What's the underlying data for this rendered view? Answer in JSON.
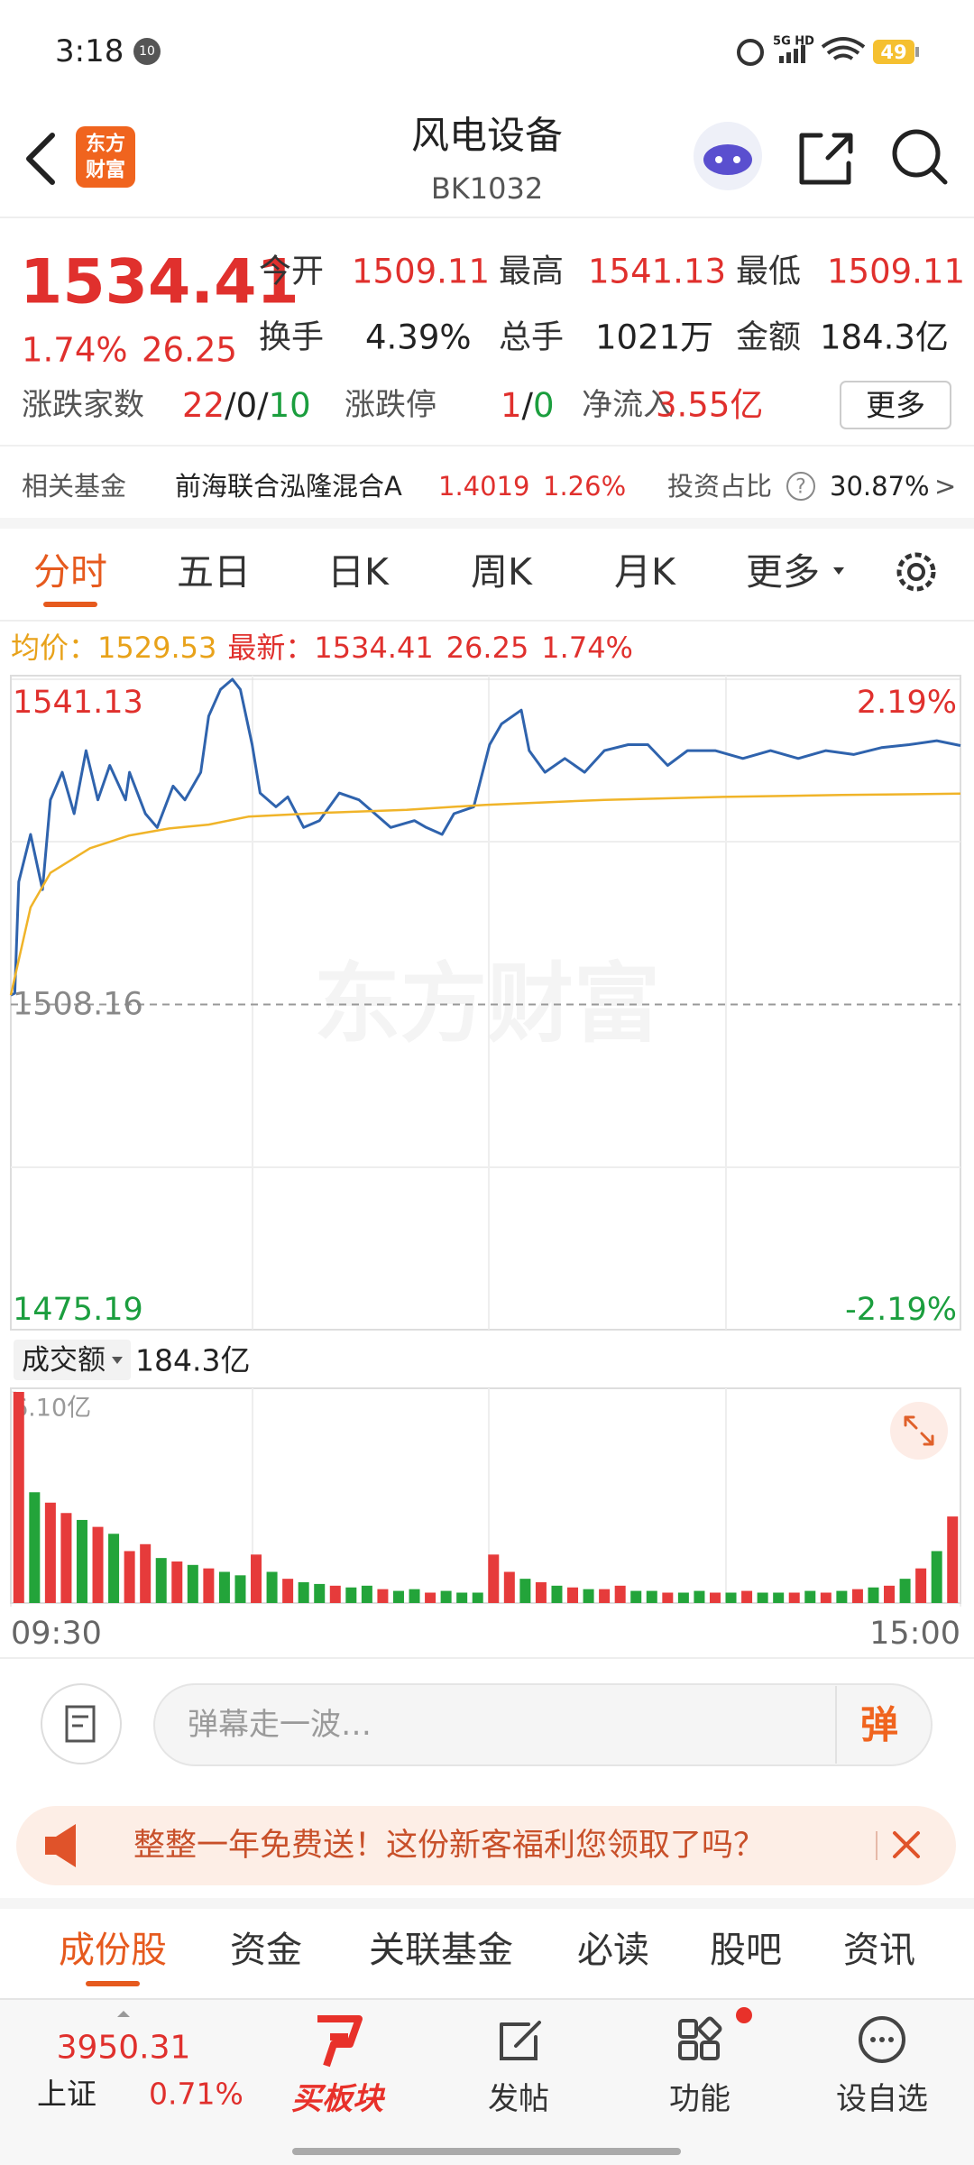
{
  "status_bar": {
    "time": "3:18",
    "notif_badge": "10",
    "network": "5G HD",
    "battery": "49"
  },
  "header": {
    "logo": [
      "东方",
      "财富"
    ],
    "title": "风电设备",
    "code": "BK1032"
  },
  "quote": {
    "price": "1534.41",
    "change_pct": "1.74%",
    "change": "26.25",
    "fields": [
      {
        "label": "今开",
        "value": "1509.11"
      },
      {
        "label": "最高",
        "value": "1541.13"
      },
      {
        "label": "最低",
        "value": "1509.11"
      },
      {
        "label": "换手",
        "value": "4.39%"
      },
      {
        "label": "总手",
        "value": "1021万"
      },
      {
        "label": "金额",
        "value": "184.3亿"
      }
    ],
    "breadth": {
      "label": "涨跌家数",
      "up": "22",
      "flat": "0",
      "down": "10",
      "sep": "/"
    },
    "limit": {
      "label": "涨跌停",
      "up": "1",
      "down": "0"
    },
    "net_inflow": {
      "label": "净流入",
      "value": "3.55亿"
    },
    "more_button": "更多"
  },
  "fund": {
    "label": "相关基金",
    "name": "前海联合泓隆混合A",
    "nav": "1.4019",
    "change_pct": "1.26%",
    "ratio_label": "投资占比",
    "help": "?",
    "ratio": "30.87%",
    "arrow": ">"
  },
  "tabs": {
    "items": [
      "分时",
      "五日",
      "日K",
      "周K",
      "月K",
      "更多"
    ],
    "active": 0
  },
  "info_bar": {
    "avg_label": "均价：",
    "avg": "1529.53",
    "latest_label": "最新：",
    "latest": "1534.41",
    "change": "26.25",
    "change_pct": "1.74%"
  },
  "watermark": "东方财富",
  "chart_data": [
    {
      "type": "line",
      "xlim": [
        0,
        240
      ],
      "ylim": [
        1475.19,
        1541.13
      ],
      "yticks": [
        1475.19,
        1508.16,
        1541.13
      ],
      "y2lim": [
        -2.19,
        2.19
      ],
      "y2ticks": [
        {
          "value": -2.19,
          "label": "-2.19%"
        },
        {
          "value": 2.19,
          "label": "2.19%"
        }
      ],
      "series": [
        {
          "color": "#2f63ad",
          "x": [
            0,
            1,
            2,
            5,
            8,
            10,
            13,
            16,
            19,
            22,
            25,
            29,
            30,
            34,
            37,
            41,
            44,
            48,
            50,
            53,
            56,
            58,
            61,
            63,
            67,
            70,
            74,
            78,
            83,
            88,
            92,
            96,
            102,
            105,
            109,
            112,
            117,
            121,
            124,
            129,
            131,
            135,
            140,
            145,
            150,
            156,
            161,
            166,
            171,
            178,
            185,
            192,
            199,
            206,
            213,
            220,
            227,
            234,
            240
          ],
          "values": [
            1509.11,
            1509.3,
            1520.6,
            1525.4,
            1519.8,
            1528.9,
            1531.7,
            1527.5,
            1533.9,
            1528.9,
            1532.4,
            1528.9,
            1531.7,
            1527.5,
            1526.1,
            1530.3,
            1528.9,
            1531.7,
            1537.4,
            1540.1,
            1541.13,
            1540.1,
            1534.5,
            1529.6,
            1528.2,
            1529.2,
            1526.1,
            1526.8,
            1529.6,
            1528.9,
            1527.5,
            1526.1,
            1526.8,
            1526.1,
            1525.4,
            1527.5,
            1528.2,
            1534.5,
            1536.6,
            1538.0,
            1533.9,
            1531.7,
            1533.1,
            1531.7,
            1533.9,
            1534.5,
            1534.5,
            1532.4,
            1533.9,
            1533.9,
            1533.1,
            1533.9,
            1533.1,
            1533.9,
            1533.5,
            1534.2,
            1534.5,
            1534.9,
            1534.41
          ]
        },
        {
          "color": "#f0b429",
          "x": [
            0,
            5,
            10,
            20,
            30,
            40,
            50,
            60,
            80,
            100,
            120,
            150,
            180,
            210,
            240
          ],
          "values": [
            1509.11,
            1518,
            1521.5,
            1524,
            1525.3,
            1526,
            1526.4,
            1527.2,
            1527.6,
            1527.9,
            1528.4,
            1528.9,
            1529.2,
            1529.4,
            1529.53
          ]
        }
      ]
    },
    {
      "type": "bar",
      "label": "成交额",
      "total": "184.3亿",
      "xlim": [
        0,
        240
      ],
      "xticks": [
        {
          "value": 0,
          "label": "09:30"
        },
        {
          "value": 240,
          "label": "15:00"
        }
      ],
      "ylim": [
        0,
        6.1
      ],
      "yticks": [
        {
          "value": 6.1,
          "label": "6.10亿"
        }
      ],
      "x": [
        2,
        6,
        10,
        14,
        18,
        22,
        26,
        30,
        34,
        38,
        42,
        46,
        50,
        54,
        58,
        62,
        66,
        70,
        74,
        78,
        82,
        86,
        90,
        94,
        98,
        102,
        106,
        110,
        114,
        118,
        122,
        126,
        130,
        134,
        138,
        142,
        146,
        150,
        154,
        158,
        162,
        166,
        170,
        174,
        178,
        182,
        186,
        190,
        194,
        198,
        202,
        206,
        210,
        214,
        218,
        222,
        226,
        230,
        234,
        238
      ],
      "values": [
        6.1,
        3.2,
        2.9,
        2.6,
        2.4,
        2.2,
        2.0,
        1.5,
        1.7,
        1.3,
        1.2,
        1.1,
        1.0,
        0.9,
        0.8,
        1.4,
        0.9,
        0.7,
        0.6,
        0.55,
        0.5,
        0.45,
        0.5,
        0.4,
        0.35,
        0.4,
        0.3,
        0.35,
        0.3,
        0.3,
        1.4,
        0.9,
        0.7,
        0.6,
        0.5,
        0.45,
        0.4,
        0.4,
        0.5,
        0.35,
        0.35,
        0.3,
        0.3,
        0.35,
        0.3,
        0.3,
        0.35,
        0.3,
        0.3,
        0.3,
        0.35,
        0.3,
        0.35,
        0.4,
        0.45,
        0.5,
        0.7,
        1.0,
        1.5,
        2.5
      ],
      "colors": [
        "#e63b3b",
        "#23a43a",
        "#e63b3b",
        "#e63b3b",
        "#23a43a",
        "#e63b3b",
        "#23a43a",
        "#e63b3b",
        "#e63b3b",
        "#23a43a",
        "#e63b3b",
        "#23a43a",
        "#e63b3b",
        "#23a43a",
        "#23a43a",
        "#e63b3b",
        "#23a43a",
        "#e63b3b",
        "#23a43a",
        "#23a43a",
        "#e63b3b",
        "#23a43a",
        "#23a43a",
        "#e63b3b",
        "#23a43a",
        "#23a43a",
        "#e63b3b",
        "#23a43a",
        "#23a43a",
        "#23a43a",
        "#e63b3b",
        "#e63b3b",
        "#23a43a",
        "#e63b3b",
        "#23a43a",
        "#e63b3b",
        "#23a43a",
        "#e63b3b",
        "#e63b3b",
        "#23a43a",
        "#23a43a",
        "#e63b3b",
        "#23a43a",
        "#23a43a",
        "#e63b3b",
        "#23a43a",
        "#e63b3b",
        "#23a43a",
        "#23a43a",
        "#e63b3b",
        "#23a43a",
        "#e63b3b",
        "#23a43a",
        "#e63b3b",
        "#23a43a",
        "#e63b3b",
        "#23a43a",
        "#e63b3b",
        "#23a43a",
        "#e63b3b"
      ]
    }
  ],
  "danmaku": {
    "placeholder": "弹幕走一波…",
    "button": "弹"
  },
  "banner": {
    "text": "整整一年免费送！这份新客福利您领取了吗？"
  },
  "bottom_tabs": {
    "items": [
      "成份股",
      "资金",
      "关联基金",
      "必读",
      "股吧",
      "资讯"
    ],
    "active": 0
  },
  "nav": {
    "index_value": "3950.31",
    "index_name": "上证",
    "index_change": "0.71%",
    "items": [
      "买板块",
      "发帖",
      "功能",
      "设自选"
    ]
  }
}
